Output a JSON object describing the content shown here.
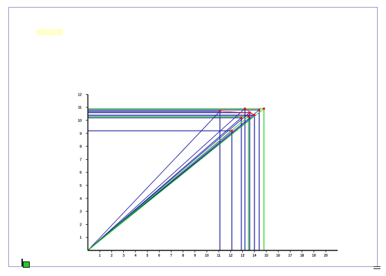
{
  "chart_data": {
    "type": "scatter",
    "title": "",
    "xlabel": "",
    "ylabel": "",
    "xlim": [
      0,
      21
    ],
    "ylim": [
      0,
      12
    ],
    "x_ticks": [
      1,
      2,
      3,
      4,
      5,
      6,
      7,
      8,
      9,
      10,
      11,
      12,
      13,
      14,
      15,
      16,
      17,
      18,
      19,
      20
    ],
    "y_ticks": [
      1,
      2,
      3,
      4,
      5,
      6,
      7,
      8,
      9,
      10,
      11,
      12
    ],
    "points": [
      {
        "label": "",
        "x": 11.1,
        "y": 10.7,
        "color": "#1a1aa0"
      },
      {
        "label": "",
        "x": 12.1,
        "y": 9.2,
        "color": "#1a1aa0"
      },
      {
        "label": "",
        "x": 12.9,
        "y": 10.2,
        "color": "#1a1aa0"
      },
      {
        "label": "",
        "x": 13.2,
        "y": 10.9,
        "color": "#1a1aa0"
      },
      {
        "label": "",
        "x": 13.6,
        "y": 10.6,
        "color": "#1a1aa0"
      },
      {
        "label": "",
        "x": 14.0,
        "y": 10.4,
        "color": "#1a1aa0"
      },
      {
        "label": "",
        "x": 14.4,
        "y": 10.8,
        "color": "#1a1aa0"
      },
      {
        "label": "",
        "x": 14.8,
        "y": 10.9,
        "color": "#22cc22"
      },
      {
        "label": "",
        "x": 13.5,
        "y": 10.3,
        "color": "#22cc22"
      }
    ],
    "red_path": [
      [
        11.1,
        10.7
      ],
      [
        13.2,
        10.6
      ],
      [
        13.6,
        10.6
      ],
      [
        14.0,
        10.4
      ],
      [
        13.2,
        10.9
      ]
    ],
    "colors": {
      "axis": "#111111",
      "series": "#1a1aa0",
      "highlight": "#22cc22",
      "labels": "#ee1111"
    }
  },
  "header": {
    "title_prefix": "",
    "title_accent": "",
    "title_suffix": ""
  },
  "footer": {
    "logo_text": ""
  },
  "icons": {
    "logo": "company-logo-icon",
    "menu": "menu-icon"
  }
}
